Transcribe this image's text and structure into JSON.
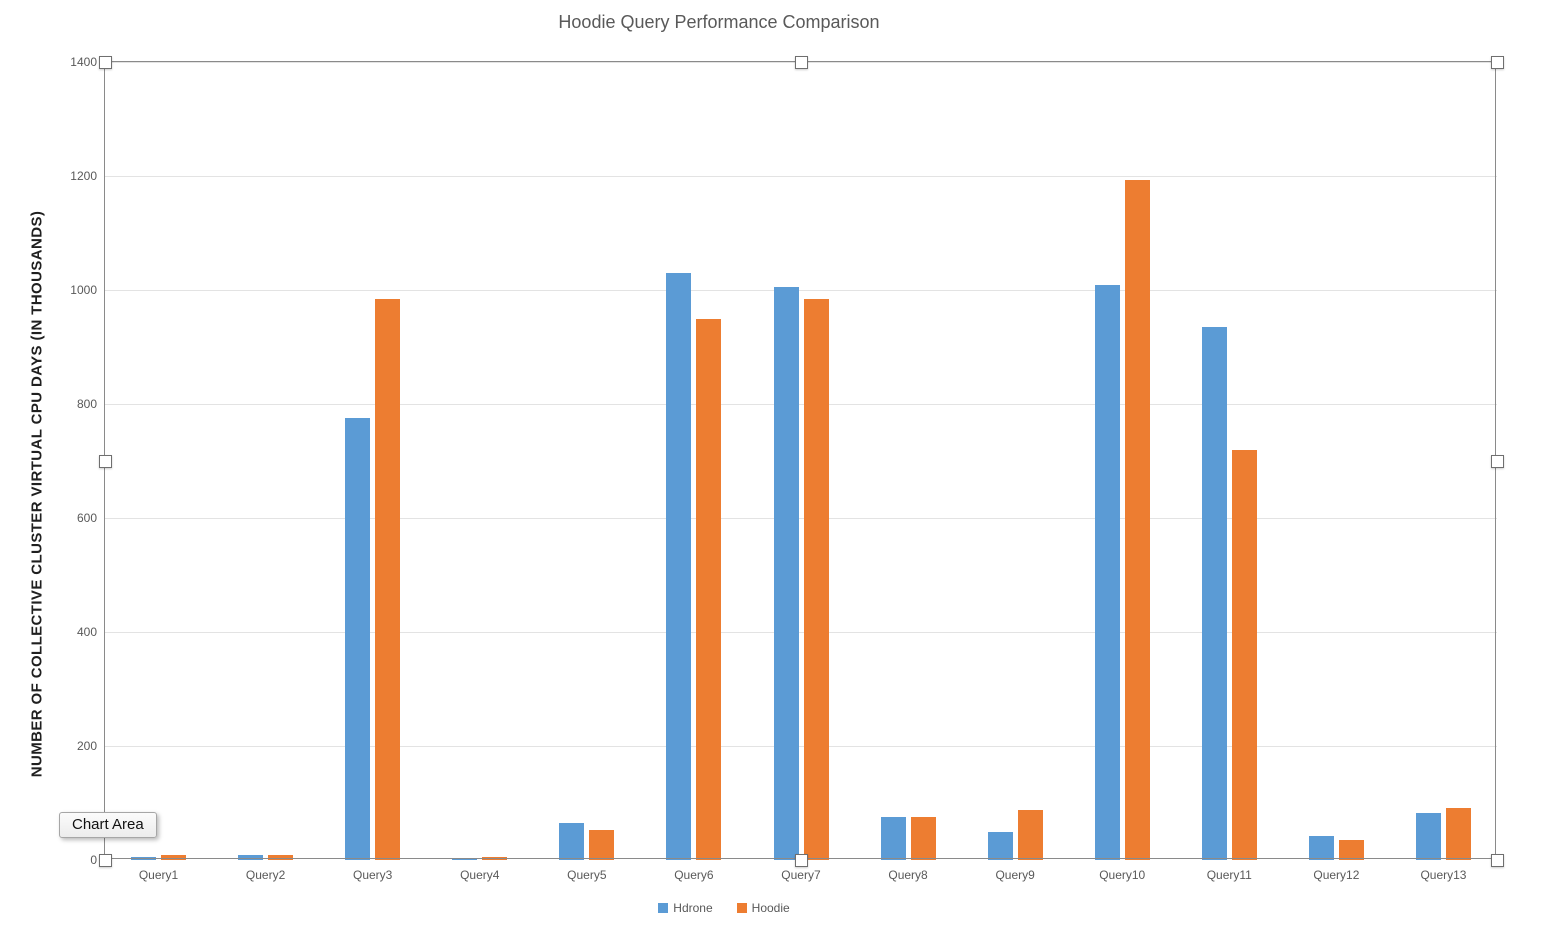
{
  "selection": {
    "tooltip_label": "Chart Area"
  },
  "colors": {
    "hdrone_blue": "#5B9BD5",
    "hoodie_orange": "#ED7D31",
    "axis_text_gray": "#595959"
  },
  "chart_data": {
    "type": "bar",
    "title": "Hoodie Query Performance Comparison",
    "xlabel": "",
    "ylabel": "NUMBER OF COLLECTIVE CLUSTER VIRTUAL CPU DAYS (IN THOUSANDS)",
    "ylim": [
      0,
      1400
    ],
    "yticks": [
      0,
      200,
      400,
      600,
      800,
      1000,
      1200,
      1400
    ],
    "grid": true,
    "legend_position": "bottom",
    "categories": [
      "Query1",
      "Query2",
      "Query3",
      "Query4",
      "Query5",
      "Query6",
      "Query7",
      "Query8",
      "Query9",
      "Query10",
      "Query11",
      "Query12",
      "Query13"
    ],
    "series": [
      {
        "name": "Hdrone",
        "color": "#5B9BD5",
        "values": [
          5,
          9,
          775,
          4,
          65,
          1030,
          1005,
          75,
          49,
          1008,
          935,
          42,
          82
        ]
      },
      {
        "name": "Hoodie",
        "color": "#ED7D31",
        "values": [
          8,
          8,
          985,
          5,
          53,
          950,
          985,
          75,
          88,
          1193,
          720,
          35,
          91
        ]
      }
    ]
  }
}
